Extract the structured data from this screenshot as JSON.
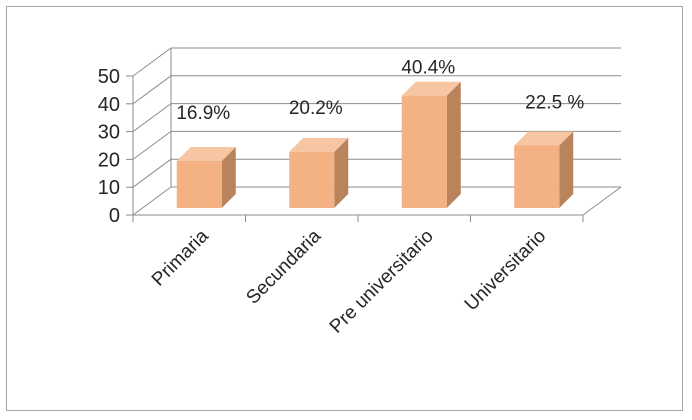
{
  "chart_data": {
    "type": "bar",
    "categories": [
      "Primaria",
      "Secundaria",
      "Pre universitario",
      "Universitario"
    ],
    "values": [
      16.9,
      20.2,
      40.4,
      22.5
    ],
    "data_labels": [
      "16.9%",
      "20.2%",
      "40.4%",
      "22.5 %"
    ],
    "y_ticks": [
      "0",
      "10",
      "20",
      "30",
      "40",
      "50"
    ],
    "ylim": [
      0,
      50
    ],
    "grid": true,
    "three_d": true,
    "bar_color": "#F4B183",
    "bar_side_color": "#B9835B",
    "bar_top_color": "#F6C6A2",
    "gridline_color": "#8c8c8c"
  }
}
